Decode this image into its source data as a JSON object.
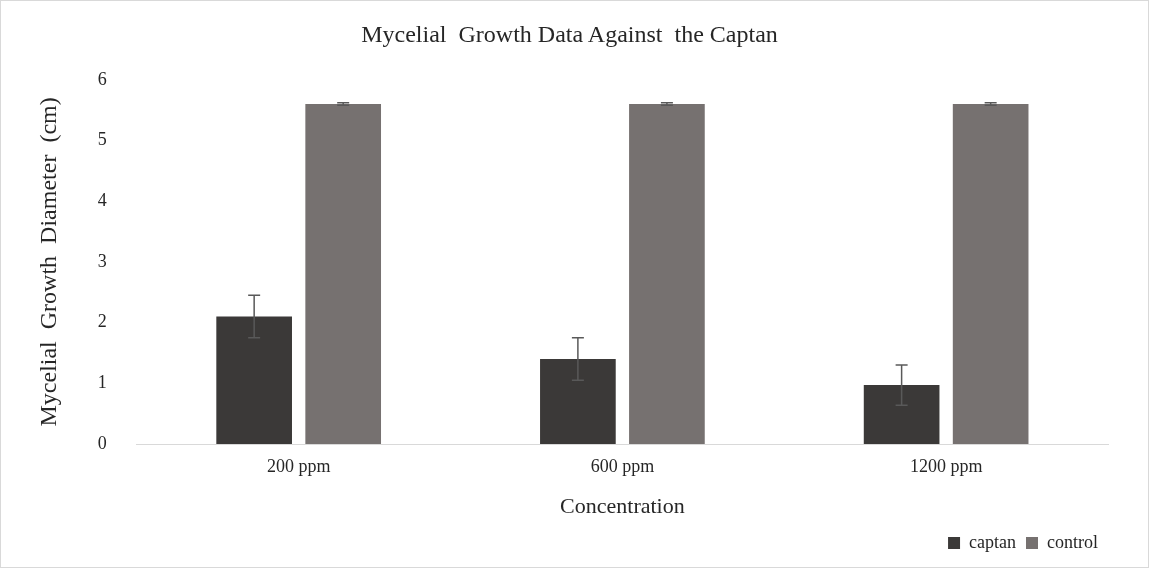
{
  "chart_data": {
    "type": "bar",
    "title": "Mycelial  Growth Data Against  the Captan",
    "xlabel": "Concentration",
    "ylabel": "Mycelial  Growth  Diameter  (cm)",
    "categories": [
      "200 ppm",
      "600 ppm",
      "1200 ppm"
    ],
    "series": [
      {
        "name": "captan",
        "color": "#3b3938",
        "values": [
          2.1,
          1.4,
          0.97
        ],
        "errors": [
          0.35,
          0.35,
          0.33
        ]
      },
      {
        "name": "control",
        "color": "#767170",
        "values": [
          5.6,
          5.6,
          5.6
        ],
        "errors": [
          0.02,
          0.02,
          0.02
        ]
      }
    ],
    "ylim": [
      0,
      6
    ],
    "yticks": [
      0,
      1,
      2,
      3,
      4,
      5,
      6
    ],
    "grid": false,
    "legend": "bottom right"
  }
}
